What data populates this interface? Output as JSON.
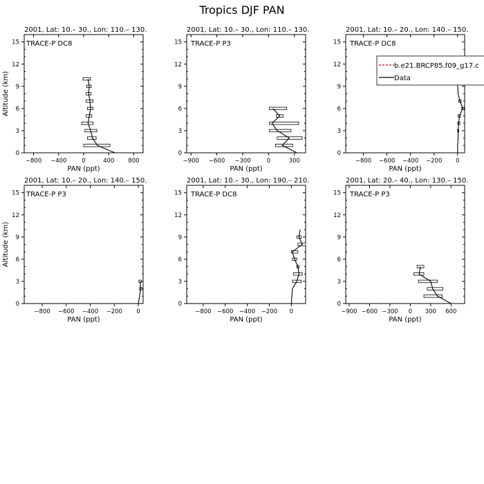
{
  "title": "Tropics DJF PAN",
  "legend": {
    "panel_index": 2,
    "entries": [
      {
        "label": "b.e21.BRCP85.f09_g17.c",
        "color": "#cc0000",
        "dash": true
      },
      {
        "label": "Data",
        "color": "#000000",
        "dash": false
      }
    ]
  },
  "chart_data": [
    {
      "type": "line",
      "title": "2001, Lat: 10.– 30., Lon: 110.– 130.",
      "campaign": "TRACE-P DC8",
      "xlabel": "PAN (ppt)",
      "ylabel": "Altitude (km)",
      "xlim": [
        -950,
        950
      ],
      "ylim": [
        0,
        16
      ],
      "xticks": [
        -800,
        -400,
        0,
        400,
        800
      ],
      "yticks": [
        0,
        3,
        6,
        9,
        12,
        15
      ],
      "series": [
        {
          "altitude": [
            0,
            1,
            2,
            3,
            4,
            5,
            6,
            7,
            8,
            9,
            10
          ],
          "mean": [
            500,
            220,
            140,
            110,
            70,
            90,
            110,
            100,
            80,
            90,
            70
          ],
          "bar_low": [
            null,
            0,
            60,
            20,
            -30,
            40,
            60,
            40,
            40,
            50,
            -10
          ],
          "bar_high": [
            null,
            420,
            200,
            210,
            150,
            130,
            150,
            150,
            120,
            120,
            110
          ]
        }
      ]
    },
    {
      "type": "line",
      "title": "2001, Lat: 10.– 30., Lon: 110.– 130.",
      "campaign": "TRACE-P P3",
      "xlabel": "PAN (ppt)",
      "ylabel": "",
      "xlim": [
        -950,
        430
      ],
      "ylim": [
        0,
        16
      ],
      "xticks": [
        -900,
        -600,
        -300,
        0,
        300
      ],
      "yticks": [
        0,
        3,
        6,
        9,
        12,
        15
      ],
      "series": [
        {
          "altitude": [
            0,
            1,
            2,
            3,
            4,
            5,
            6
          ],
          "mean": [
            330,
            160,
            240,
            100,
            40,
            130,
            50
          ],
          "bar_low": [
            null,
            80,
            100,
            10,
            10,
            90,
            10
          ],
          "bar_high": [
            null,
            280,
            390,
            260,
            350,
            170,
            210
          ]
        }
      ]
    },
    {
      "type": "line",
      "title": "2001, Lat: 10.– 20., Lon: 140.– 150.",
      "campaign": "TRACE-P DC8",
      "xlabel": "PAN (ppt)",
      "ylabel": "",
      "xlim": [
        -950,
        60
      ],
      "ylim": [
        0,
        16
      ],
      "xticks": [
        -800,
        -600,
        -400,
        -200,
        0
      ],
      "yticks": [
        0,
        3,
        6,
        9,
        12,
        15
      ],
      "series": [
        {
          "altitude": [
            0,
            1,
            2,
            3,
            4,
            5,
            6,
            7,
            8,
            9,
            10
          ],
          "mean": [
            0,
            0,
            5,
            5,
            10,
            15,
            45,
            20,
            5,
            0,
            0
          ],
          "bar_low": [
            null,
            null,
            null,
            0,
            0,
            5,
            35,
            10,
            null,
            null,
            null
          ],
          "bar_high": [
            null,
            null,
            null,
            10,
            20,
            25,
            55,
            30,
            null,
            null,
            null
          ]
        }
      ]
    },
    {
      "type": "line",
      "title": "2001, Lat: 10.– 20., Lon: 140.– 150.",
      "campaign": "TRACE-P P3",
      "xlabel": "PAN (ppt)",
      "ylabel": "Altitude (km)",
      "xlim": [
        -950,
        40
      ],
      "ylim": [
        0,
        16
      ],
      "xticks": [
        -800,
        -600,
        -400,
        -200,
        0
      ],
      "yticks": [
        0,
        3,
        6,
        9,
        12,
        15
      ],
      "series": [
        {
          "altitude": [
            0,
            1,
            2,
            3
          ],
          "mean": [
            0,
            10,
            20,
            15
          ],
          "bar_low": [
            null,
            null,
            10,
            5
          ],
          "bar_high": [
            null,
            null,
            30,
            25
          ]
        }
      ]
    },
    {
      "type": "line",
      "title": "2001, Lat: 10.– 30., Lon: 190.– 210.",
      "campaign": "TRACE-P DC8",
      "xlabel": "PAN (ppt)",
      "ylabel": "",
      "xlim": [
        -950,
        130
      ],
      "ylim": [
        0,
        16
      ],
      "xticks": [
        -800,
        -600,
        -400,
        -200,
        0
      ],
      "yticks": [
        0,
        3,
        6,
        9,
        12,
        15
      ],
      "series": [
        {
          "altitude": [
            0,
            1,
            2,
            3,
            4,
            5,
            6,
            7,
            8,
            9,
            10
          ],
          "mean": [
            0,
            5,
            10,
            50,
            70,
            60,
            30,
            10,
            100,
            70,
            80
          ],
          "bar_low": [
            null,
            null,
            null,
            10,
            20,
            50,
            10,
            0,
            60,
            50,
            null
          ],
          "bar_high": [
            null,
            null,
            null,
            90,
            100,
            70,
            50,
            60,
            140,
            90,
            null
          ]
        }
      ]
    },
    {
      "type": "line",
      "title": "2001, Lat: 20.– 40., Lon: 130.– 150.",
      "campaign": "TRACE-P P3",
      "xlabel": "PAN (ppt)",
      "ylabel": "",
      "xlim": [
        -950,
        800
      ],
      "ylim": [
        0,
        16
      ],
      "xticks": [
        -900,
        -600,
        -300,
        0,
        300,
        600
      ],
      "yticks": [
        0,
        3,
        6,
        9,
        12,
        15
      ],
      "series": [
        {
          "altitude": [
            0,
            1,
            2,
            3,
            4,
            5
          ],
          "mean": [
            600,
            400,
            330,
            300,
            130,
            150
          ],
          "bar_low": [
            null,
            200,
            250,
            120,
            50,
            100
          ],
          "bar_high": [
            null,
            470,
            480,
            400,
            200,
            200
          ]
        }
      ]
    }
  ]
}
